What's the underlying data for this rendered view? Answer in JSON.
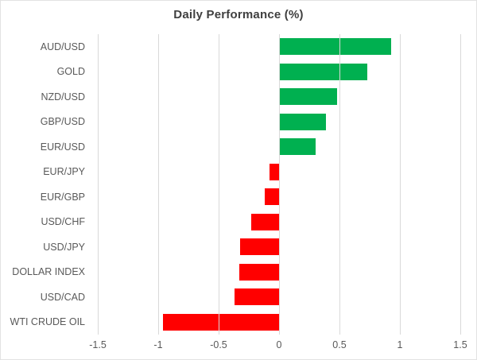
{
  "chart_data": {
    "type": "bar",
    "orientation": "horizontal",
    "title": "Daily Performance (%)",
    "categories": [
      "AUD/USD",
      "GOLD",
      "NZD/USD",
      "GBP/USD",
      "EUR/USD",
      "EUR/JPY",
      "EUR/GBP",
      "USD/CHF",
      "USD/JPY",
      "DOLLAR INDEX",
      "USD/CAD",
      "WTI CRUDE OIL"
    ],
    "values": [
      0.93,
      0.73,
      0.48,
      0.39,
      0.3,
      -0.08,
      -0.12,
      -0.23,
      -0.32,
      -0.33,
      -0.37,
      -0.96
    ],
    "xlim": [
      -1.5,
      1.5
    ],
    "xtick_labels": [
      "-1.5",
      "-1",
      "-0.5",
      "0",
      "0.5",
      "1",
      "1.5"
    ],
    "grid": true,
    "legend": false,
    "colors": {
      "positive": "#00B050",
      "negative": "#FF0000",
      "gridline": "#D9D9D9",
      "title_text": "#3F3F3F",
      "axis_text": "#595959",
      "chart_border": "#E2E2E2",
      "background": "#FFFFFF"
    }
  }
}
